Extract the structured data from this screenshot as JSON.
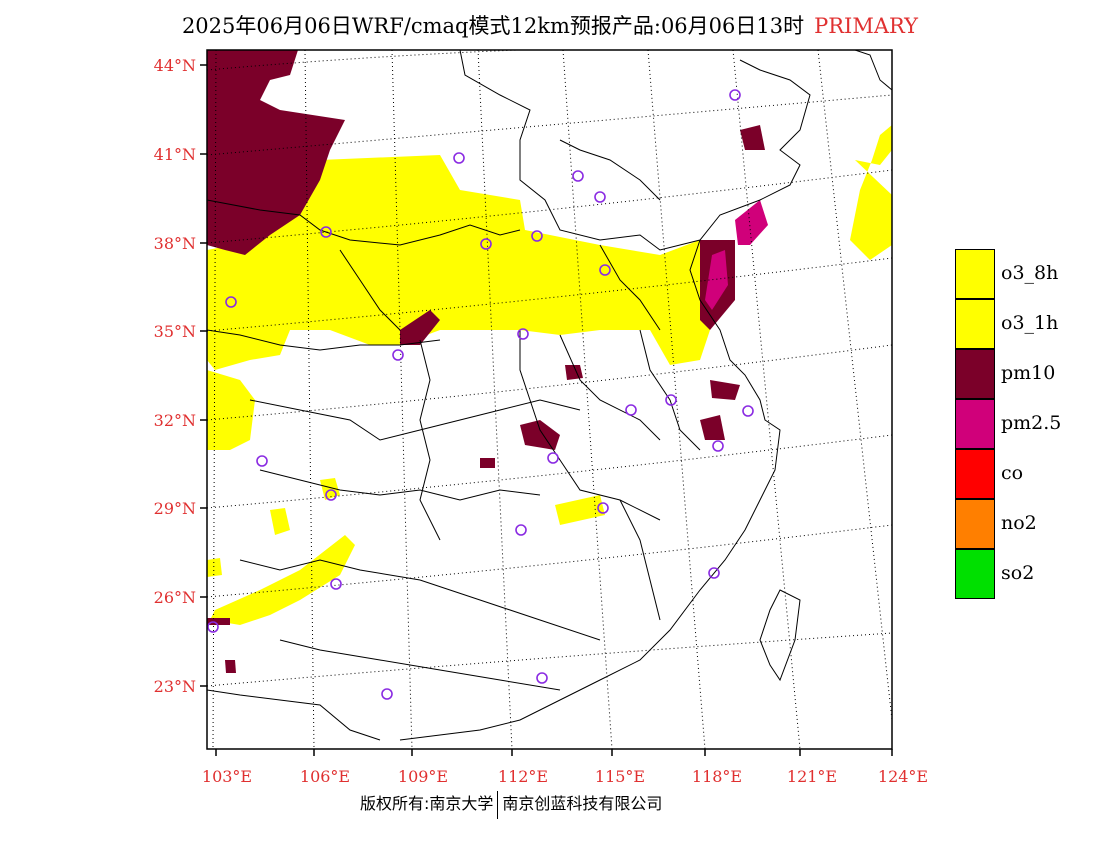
{
  "title": {
    "main": "2025年06月06日WRF/cmaq模式12km预报产品:06月06日13时",
    "tag": "PRIMARY"
  },
  "map": {
    "lon_ticks": [
      "103°E",
      "106°E",
      "109°E",
      "112°E",
      "115°E",
      "118°E",
      "121°E",
      "124°E"
    ],
    "lat_ticks": [
      "44°N",
      "41°N",
      "38°N",
      "35°N",
      "32°N",
      "29°N",
      "26°N",
      "23°N"
    ],
    "colors": {
      "o3_8h": "#ffff00",
      "o3_1h": "#ffff00",
      "pm10": "#7b0029",
      "pm25": "#d0007a",
      "co": "#ff0000",
      "no2": "#ff7f00",
      "so2": "#00e000",
      "station": "#8a2be2"
    }
  },
  "legend": [
    {
      "label": "o3_8h",
      "color": "#ffff00"
    },
    {
      "label": "o3_1h",
      "color": "#ffff00"
    },
    {
      "label": "pm10",
      "color": "#7b0029"
    },
    {
      "label": "pm2.5",
      "color": "#d0007a"
    },
    {
      "label": "co",
      "color": "#ff0000"
    },
    {
      "label": "no2",
      "color": "#ff7f00"
    },
    {
      "label": "so2",
      "color": "#00e000"
    }
  ],
  "footer": {
    "left": "版权所有:南京大学",
    "right": "南京创蓝科技有限公司"
  }
}
